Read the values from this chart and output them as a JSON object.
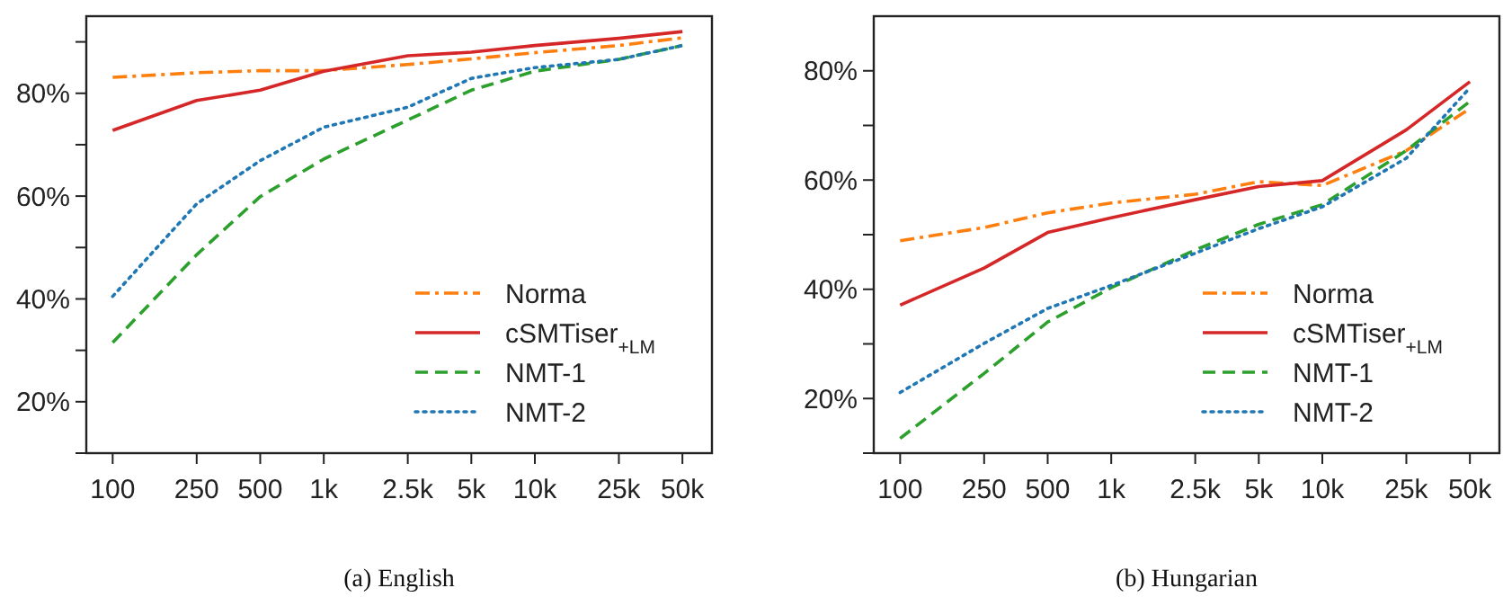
{
  "chart_data": [
    {
      "type": "line",
      "title": "(a) English",
      "x": [
        100,
        250,
        500,
        1000,
        2500,
        5000,
        10000,
        25000,
        50000
      ],
      "log": "x",
      "xlim": [
        75,
        69000
      ],
      "xticks": [
        {
          "value": 100,
          "label": "100"
        },
        {
          "value": 250,
          "label": "250"
        },
        {
          "value": 500,
          "label": "500"
        },
        {
          "value": 1000,
          "label": "1k"
        },
        {
          "value": 2500,
          "label": "2.5k"
        },
        {
          "value": 5000,
          "label": "5k"
        },
        {
          "value": 10000,
          "label": "10k"
        },
        {
          "value": 25000,
          "label": "25k"
        },
        {
          "value": 50000,
          "label": "50k"
        }
      ],
      "ylim": [
        10,
        95
      ],
      "yticks": [
        {
          "value": 10,
          "label": null
        },
        {
          "value": 20,
          "label": "20%"
        },
        {
          "value": 30,
          "label": null
        },
        {
          "value": 40,
          "label": "40%"
        },
        {
          "value": 50,
          "label": null
        },
        {
          "value": 60,
          "label": "60%"
        },
        {
          "value": 70,
          "label": null
        },
        {
          "value": 80,
          "label": "80%"
        },
        {
          "value": 90,
          "label": null
        }
      ],
      "grid": false,
      "legend": "bottom right",
      "marker": "none",
      "series": [
        {
          "name": "Norma",
          "color": "#ff7f0e",
          "line_style": "dashdot",
          "values": [
            83.1,
            84.0,
            84.4,
            84.4,
            85.6,
            86.7,
            87.9,
            89.3,
            90.8
          ]
        },
        {
          "name": "cSMTiser$_{+LM}$",
          "color": "#d62728",
          "line_style": "solid",
          "values": [
            72.8,
            78.6,
            80.6,
            84.3,
            87.3,
            88.0,
            89.3,
            90.7,
            92.0
          ]
        },
        {
          "name": "NMT-1",
          "color": "#2ca02c",
          "line_style": "dashed",
          "values": [
            31.5,
            48.6,
            59.9,
            67.2,
            74.8,
            80.6,
            84.3,
            86.6,
            89.3
          ]
        },
        {
          "name": "NMT-2",
          "color": "#1f77b4",
          "line_style": "dotted",
          "values": [
            40.5,
            58.5,
            66.9,
            73.4,
            77.3,
            82.9,
            85.0,
            86.6,
            89.3
          ]
        }
      ]
    },
    {
      "type": "line",
      "title": "(b) Hungarian",
      "x": [
        100,
        250,
        500,
        1000,
        2500,
        5000,
        10000,
        25000,
        50000
      ],
      "log": "x",
      "xlim": [
        75,
        69000
      ],
      "xticks": [
        {
          "value": 100,
          "label": "100"
        },
        {
          "value": 250,
          "label": "250"
        },
        {
          "value": 500,
          "label": "500"
        },
        {
          "value": 1000,
          "label": "1k"
        },
        {
          "value": 2500,
          "label": "2.5k"
        },
        {
          "value": 5000,
          "label": "5k"
        },
        {
          "value": 10000,
          "label": "10k"
        },
        {
          "value": 25000,
          "label": "25k"
        },
        {
          "value": 50000,
          "label": "50k"
        }
      ],
      "ylim": [
        10,
        90
      ],
      "yticks": [
        {
          "value": 10,
          "label": null
        },
        {
          "value": 20,
          "label": "20%"
        },
        {
          "value": 30,
          "label": null
        },
        {
          "value": 40,
          "label": "40%"
        },
        {
          "value": 50,
          "label": null
        },
        {
          "value": 60,
          "label": "60%"
        },
        {
          "value": 70,
          "label": null
        },
        {
          "value": 80,
          "label": "80%"
        }
      ],
      "grid": false,
      "legend": "bottom right",
      "marker": "none",
      "series": [
        {
          "name": "Norma",
          "color": "#ff7f0e",
          "line_style": "dashdot",
          "values": [
            48.9,
            51.3,
            54.0,
            55.8,
            57.4,
            59.7,
            59.0,
            65.4,
            73.1
          ]
        },
        {
          "name": "cSMTiser$_{+LM}$",
          "color": "#d62728",
          "line_style": "solid",
          "values": [
            37.1,
            43.9,
            50.4,
            53.1,
            56.4,
            58.8,
            59.9,
            69.2,
            78.0
          ]
        },
        {
          "name": "NMT-1",
          "color": "#2ca02c",
          "line_style": "dashed",
          "values": [
            12.7,
            24.6,
            34.0,
            40.3,
            47.2,
            51.9,
            55.5,
            65.4,
            74.4
          ]
        },
        {
          "name": "NMT-2",
          "color": "#1f77b4",
          "line_style": "dotted",
          "values": [
            21.1,
            30.1,
            36.5,
            40.7,
            46.6,
            51.1,
            55.1,
            64.0,
            76.9
          ]
        }
      ]
    }
  ]
}
